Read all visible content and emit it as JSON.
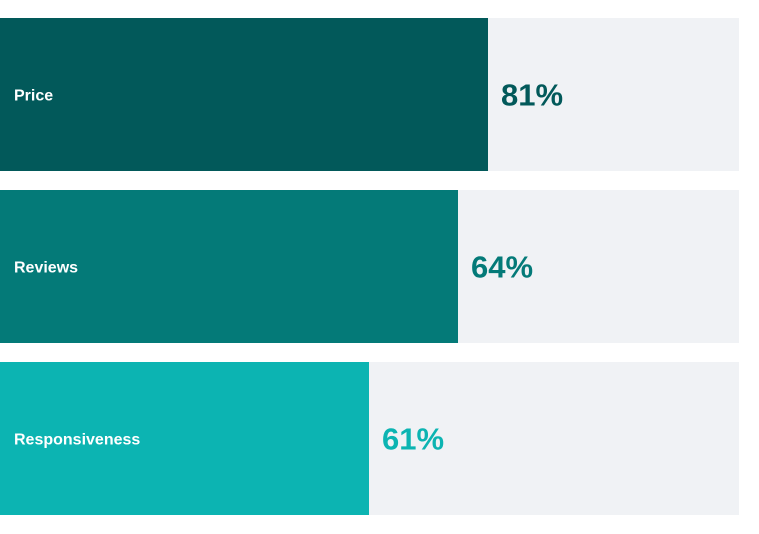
{
  "chart_data": {
    "type": "bar",
    "orientation": "horizontal",
    "categories": [
      "Price",
      "Reviews",
      "Responsiveness"
    ],
    "values": [
      81,
      64,
      61
    ],
    "value_labels": [
      "81%",
      "64%",
      "61%"
    ],
    "unit": "%",
    "xlim": [
      0,
      100
    ],
    "colors": [
      "#02595a",
      "#047a78",
      "#0cb4b2"
    ],
    "track_color": "#f0f2f5",
    "label_color": "#ffffff",
    "grid": false,
    "legend": "none"
  }
}
